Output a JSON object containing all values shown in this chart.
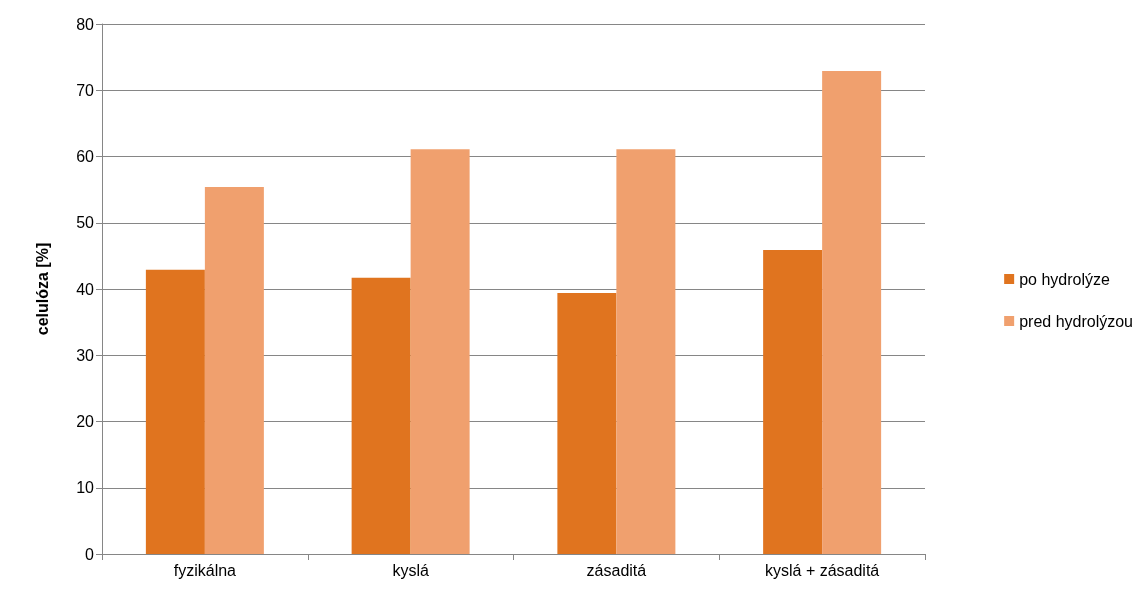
{
  "chart_data": {
    "type": "bar",
    "ylabel": "celulóza [%]",
    "categories": [
      "fyzikálna",
      "kyslá",
      "zásaditá",
      "kyslá + zásaditá"
    ],
    "series": [
      {
        "name": "po hydrolýze",
        "color": "#e0741f",
        "values": [
          42.9,
          41.7,
          39.4,
          45.9
        ]
      },
      {
        "name": "pred hydrolýzou",
        "color": "#f0a06e",
        "values": [
          55.4,
          61.1,
          61.1,
          72.9
        ]
      }
    ],
    "ylim": [
      0,
      80
    ],
    "yticks": [
      0,
      10,
      20,
      30,
      40,
      50,
      60,
      70,
      80
    ],
    "grid": "y",
    "legend": "right"
  }
}
